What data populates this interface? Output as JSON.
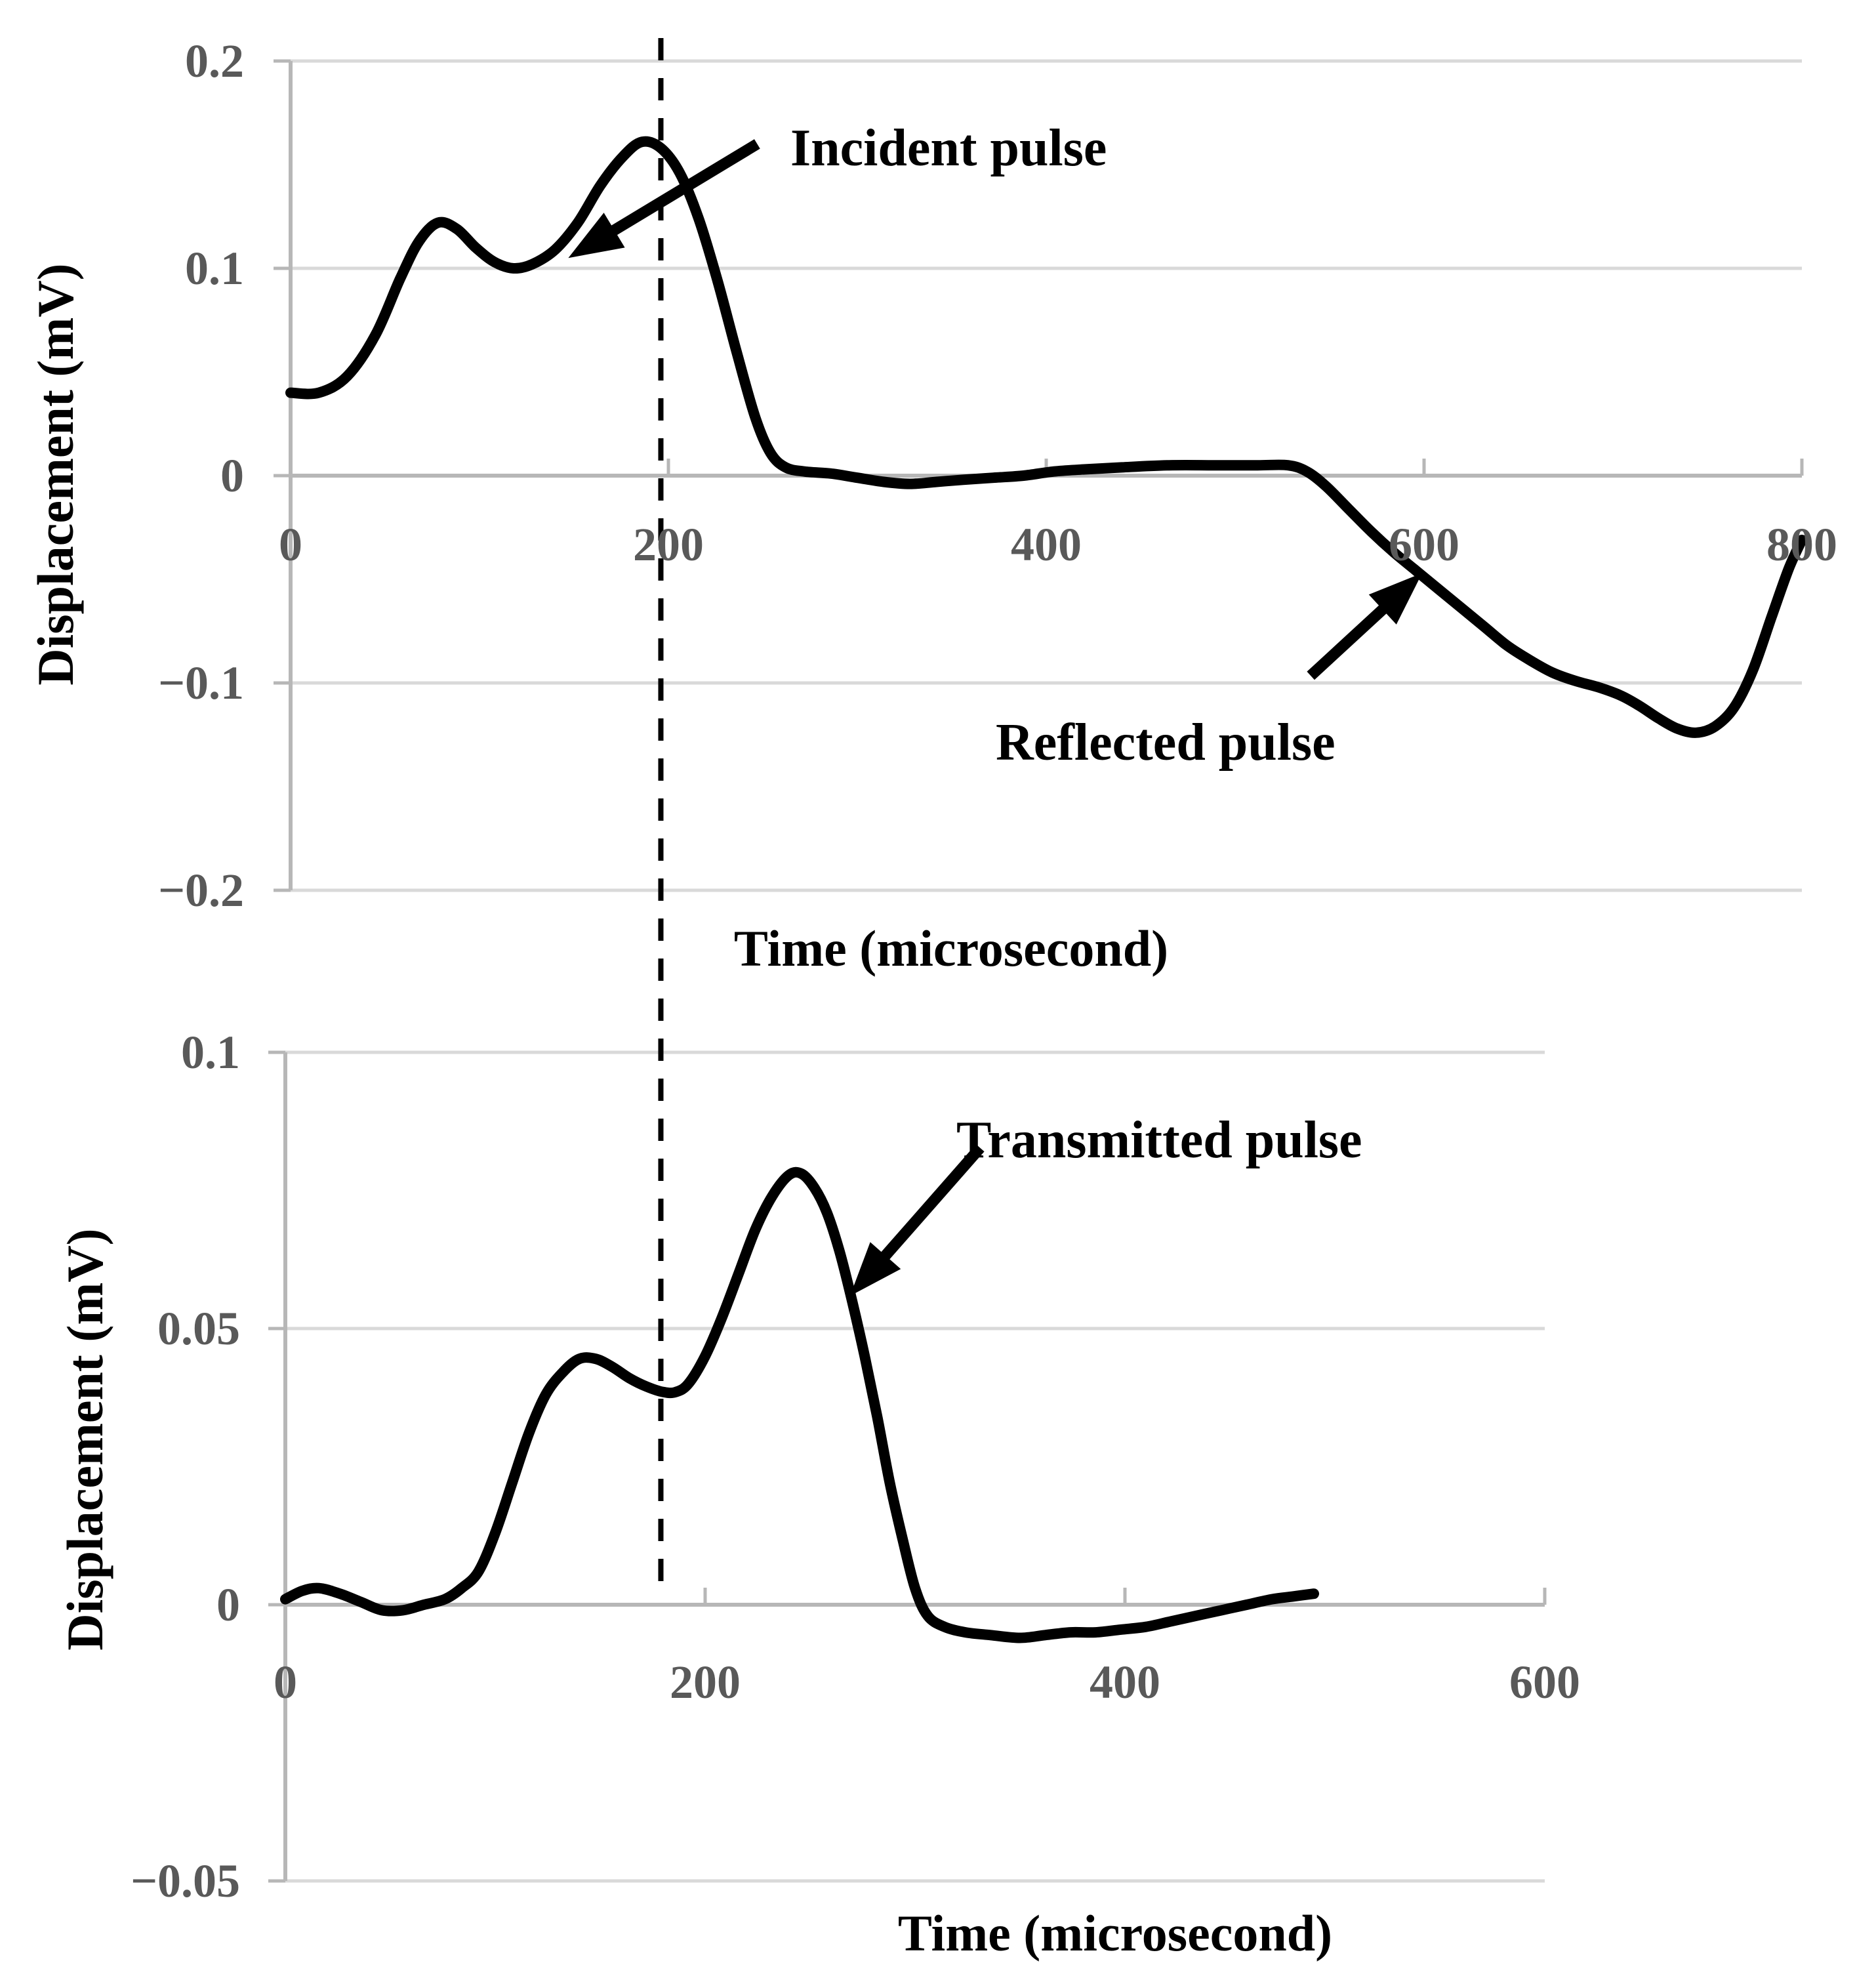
{
  "figure": {
    "background_color": "#ffffff",
    "curve_color": "#000000",
    "grid_color": "#d9d9d9",
    "axis_color": "#b7b7b7",
    "tick_label_color": "#595959",
    "annotation_color": "#000000"
  },
  "chart_data": [
    {
      "type": "line",
      "title": "",
      "xlabel": "Time (microsecond)",
      "ylabel": "Displacement (mV)",
      "xlim": [
        0,
        800
      ],
      "ylim": [
        -0.2,
        0.2
      ],
      "grid": true,
      "legend": "none",
      "x_ticks": [
        0,
        200,
        400,
        600,
        800
      ],
      "x_tick_labels": [
        "0",
        "200",
        "400",
        "600",
        "800"
      ],
      "y_ticks": [
        0.2,
        0.1,
        0,
        -0.1,
        -0.2
      ],
      "y_tick_labels": [
        "0.2",
        "0.1",
        "0",
        "−0.1",
        "−0.2"
      ],
      "dashed_marker_x": 196,
      "series": [
        {
          "name": "incident-and-reflected-pulse",
          "points": [
            [
              0,
              0.04
            ],
            [
              15,
              0.04
            ],
            [
              30,
              0.048
            ],
            [
              45,
              0.068
            ],
            [
              58,
              0.095
            ],
            [
              68,
              0.113
            ],
            [
              78,
              0.122
            ],
            [
              88,
              0.119
            ],
            [
              98,
              0.11
            ],
            [
              108,
              0.103
            ],
            [
              118,
              0.1
            ],
            [
              128,
              0.102
            ],
            [
              140,
              0.109
            ],
            [
              152,
              0.122
            ],
            [
              164,
              0.14
            ],
            [
              176,
              0.154
            ],
            [
              186,
              0.161
            ],
            [
              196,
              0.158
            ],
            [
              206,
              0.146
            ],
            [
              216,
              0.124
            ],
            [
              226,
              0.094
            ],
            [
              236,
              0.06
            ],
            [
              246,
              0.028
            ],
            [
              254,
              0.011
            ],
            [
              262,
              0.004
            ],
            [
              272,
              0.002
            ],
            [
              286,
              0.001
            ],
            [
              300,
              -0.001
            ],
            [
              314,
              -0.003
            ],
            [
              328,
              -0.004
            ],
            [
              342,
              -0.003
            ],
            [
              356,
              -0.002
            ],
            [
              372,
              -0.001
            ],
            [
              388,
              0.0
            ],
            [
              404,
              0.002
            ],
            [
              420,
              0.003
            ],
            [
              440,
              0.004
            ],
            [
              465,
              0.005
            ],
            [
              490,
              0.005
            ],
            [
              512,
              0.005
            ],
            [
              528,
              0.005
            ],
            [
              538,
              0.002
            ],
            [
              548,
              -0.005
            ],
            [
              560,
              -0.016
            ],
            [
              572,
              -0.027
            ],
            [
              584,
              -0.037
            ],
            [
              596,
              -0.046
            ],
            [
              608,
              -0.055
            ],
            [
              620,
              -0.064
            ],
            [
              632,
              -0.073
            ],
            [
              644,
              -0.082
            ],
            [
              656,
              -0.089
            ],
            [
              668,
              -0.095
            ],
            [
              680,
              -0.099
            ],
            [
              692,
              -0.102
            ],
            [
              704,
              -0.106
            ],
            [
              714,
              -0.111
            ],
            [
              724,
              -0.117
            ],
            [
              734,
              -0.122
            ],
            [
              744,
              -0.124
            ],
            [
              754,
              -0.121
            ],
            [
              764,
              -0.112
            ],
            [
              774,
              -0.094
            ],
            [
              784,
              -0.068
            ],
            [
              793,
              -0.045
            ],
            [
              800,
              -0.031
            ]
          ]
        }
      ],
      "annotations": [
        {
          "text": "Incident pulse",
          "arrow_from": [
            247,
            0.16
          ],
          "arrow_to": [
            147,
            0.105
          ]
        },
        {
          "text": "Reflected pulse",
          "arrow_from": [
            540,
            -0.0965
          ],
          "arrow_to": [
            599,
            -0.047
          ]
        }
      ]
    },
    {
      "type": "line",
      "title": "",
      "xlabel": "Time (microsecond)",
      "ylabel": "Displacement (mV)",
      "xlim": [
        0,
        600
      ],
      "ylim": [
        -0.05,
        0.1
      ],
      "grid": true,
      "legend": "none",
      "x_ticks": [
        0,
        200,
        400,
        600
      ],
      "x_tick_labels": [
        "0",
        "200",
        "400",
        "600"
      ],
      "y_ticks": [
        0.1,
        0.05,
        0,
        -0.05
      ],
      "y_tick_labels": [
        "0.1",
        "0.05",
        "0",
        "−0.05"
      ],
      "dashed_marker_x": 179,
      "series": [
        {
          "name": "transmitted-pulse",
          "points": [
            [
              0,
              0.001
            ],
            [
              8,
              0.0025
            ],
            [
              16,
              0.003
            ],
            [
              26,
              0.002
            ],
            [
              36,
              0.0005
            ],
            [
              46,
              -0.001
            ],
            [
              56,
              -0.001
            ],
            [
              66,
              0.0
            ],
            [
              76,
              0.001
            ],
            [
              84,
              0.003
            ],
            [
              92,
              0.006
            ],
            [
              100,
              0.013
            ],
            [
              108,
              0.022
            ],
            [
              116,
              0.031
            ],
            [
              124,
              0.038
            ],
            [
              132,
              0.042
            ],
            [
              140,
              0.0445
            ],
            [
              148,
              0.0445
            ],
            [
              156,
              0.043
            ],
            [
              164,
              0.041
            ],
            [
              172,
              0.0395
            ],
            [
              180,
              0.0385
            ],
            [
              186,
              0.0385
            ],
            [
              192,
              0.04
            ],
            [
              200,
              0.045
            ],
            [
              208,
              0.052
            ],
            [
              216,
              0.06
            ],
            [
              224,
              0.068
            ],
            [
              232,
              0.074
            ],
            [
              240,
              0.0778
            ],
            [
              246,
              0.078
            ],
            [
              252,
              0.0755
            ],
            [
              258,
              0.071
            ],
            [
              264,
              0.064
            ],
            [
              270,
              0.055
            ],
            [
              276,
              0.045
            ],
            [
              282,
              0.034
            ],
            [
              288,
              0.022
            ],
            [
              294,
              0.012
            ],
            [
              300,
              0.003
            ],
            [
              306,
              -0.002
            ],
            [
              314,
              -0.004
            ],
            [
              324,
              -0.005
            ],
            [
              336,
              -0.0055
            ],
            [
              350,
              -0.006
            ],
            [
              362,
              -0.0055
            ],
            [
              374,
              -0.005
            ],
            [
              386,
              -0.005
            ],
            [
              398,
              -0.0045
            ],
            [
              410,
              -0.004
            ],
            [
              422,
              -0.003
            ],
            [
              434,
              -0.002
            ],
            [
              446,
              -0.001
            ],
            [
              458,
              0.0
            ],
            [
              470,
              0.001
            ],
            [
              480,
              0.0015
            ],
            [
              490,
              0.002
            ]
          ]
        }
      ],
      "annotations": [
        {
          "text": "Transmitted pulse",
          "arrow_from": [
            331,
            0.0827
          ],
          "arrow_to": [
            269,
            0.0559
          ]
        }
      ]
    }
  ]
}
